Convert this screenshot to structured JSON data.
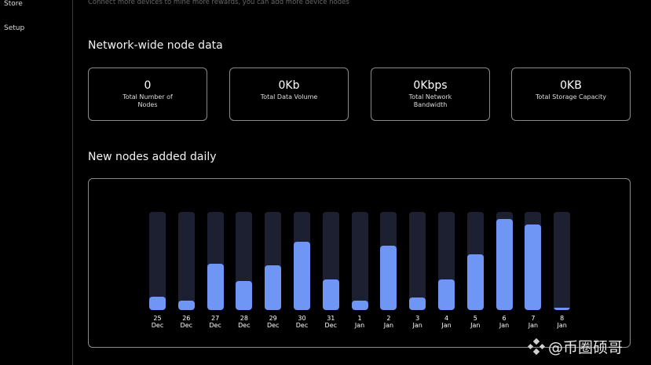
{
  "sidebar": {
    "items": [
      {
        "label": "Store"
      },
      {
        "label": "Setup"
      }
    ]
  },
  "main": {
    "subtitle": "Connect more devices to mine more rewards, you can add more device nodes",
    "network_title": "Network-wide node data",
    "stats": [
      {
        "value": "0",
        "label": "Total Number of Nodes"
      },
      {
        "value": "0Kb",
        "label": "Total Data Volume"
      },
      {
        "value": "0Kbps",
        "label": "Total Network Bandwidth"
      },
      {
        "value": "0KB",
        "label": "Total Storage Capacity"
      }
    ],
    "chart_title": "New nodes added daily"
  },
  "chart_data": {
    "type": "bar",
    "categories": [
      "25 Dec",
      "26 Dec",
      "27 Dec",
      "28 Dec",
      "29 Dec",
      "30 Dec",
      "31 Dec",
      "1 Jan",
      "2 Jan",
      "3 Jan",
      "4 Jan",
      "5 Jan",
      "6 Jan",
      "7 Jan",
      "8 Jan"
    ],
    "tick_labels": [
      [
        "25",
        "Dec"
      ],
      [
        "26",
        "Dec"
      ],
      [
        "27",
        "Dec"
      ],
      [
        "28",
        "Dec"
      ],
      [
        "29",
        "Dec"
      ],
      [
        "30",
        "Dec"
      ],
      [
        "31",
        "Dec"
      ],
      [
        "1",
        "Jan"
      ],
      [
        "2",
        "Jan"
      ],
      [
        "3",
        "Jan"
      ],
      [
        "4",
        "Jan"
      ],
      [
        "5",
        "Jan"
      ],
      [
        "6",
        "Jan"
      ],
      [
        "7",
        "Jan"
      ],
      [
        "8",
        "Jan"
      ]
    ],
    "values": [
      14,
      10,
      47,
      30,
      46,
      70,
      31,
      10,
      66,
      13,
      31,
      57,
      93,
      87,
      2
    ],
    "value_unit": "percent of track (estimated, no axis shown)",
    "ylim": [
      0,
      100
    ],
    "grid": false,
    "colors": {
      "fill": "#6f96f4",
      "track": "#1d2030"
    }
  },
  "watermark": {
    "text": "@币圈硕哥"
  }
}
